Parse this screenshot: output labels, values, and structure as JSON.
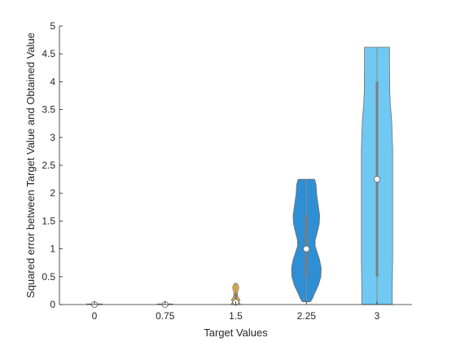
{
  "chart_data": {
    "type": "violin",
    "xlabel": "Target Values",
    "ylabel": "Squared error between Target Value and Obtained Value",
    "categories": [
      "0",
      "0.75",
      "1.5",
      "2.25",
      "3"
    ],
    "x_ticks": [
      "0",
      "0.75",
      "1.5",
      "2.25",
      "3"
    ],
    "y_ticks": [
      "0",
      "0.5",
      "1",
      "1.5",
      "2",
      "2.5",
      "3",
      "3.5",
      "4",
      "4.5",
      "5"
    ],
    "ylim": [
      0,
      5
    ],
    "grid": false,
    "violins": [
      {
        "category": "0",
        "color": "#e3e3e3",
        "min": 0,
        "max": 0.01,
        "median": 0,
        "q1": 0,
        "q3": 0,
        "profile": [
          [
            0,
            0.4
          ],
          [
            0.01,
            0.4
          ]
        ]
      },
      {
        "category": "0.75",
        "color": "#e3e3e3",
        "min": 0,
        "max": 0.01,
        "median": 0,
        "q1": 0,
        "q3": 0,
        "profile": [
          [
            0,
            0.4
          ],
          [
            0.01,
            0.4
          ]
        ]
      },
      {
        "category": "1.5",
        "color": "#e6b341",
        "min": 0,
        "max": 0.38,
        "median": 0.04,
        "q1": 0.01,
        "q3": 0.2,
        "profile": [
          [
            0,
            0.25
          ],
          [
            0.02,
            0.2
          ],
          [
            0.05,
            0.15
          ],
          [
            0.08,
            0.22
          ],
          [
            0.12,
            0.14
          ],
          [
            0.17,
            0.09
          ],
          [
            0.22,
            0.09
          ],
          [
            0.27,
            0.13
          ],
          [
            0.3,
            0.16
          ],
          [
            0.33,
            0.14
          ],
          [
            0.36,
            0.09
          ],
          [
            0.38,
            0.06
          ]
        ]
      },
      {
        "category": "2.25",
        "color": "#2f8fd5",
        "min": 0.05,
        "max": 2.25,
        "median": 1,
        "q1": 0.5,
        "q3": 1.6,
        "profile": [
          [
            0.05,
            0.2
          ],
          [
            0.1,
            0.3
          ],
          [
            0.2,
            0.42
          ],
          [
            0.35,
            0.62
          ],
          [
            0.5,
            0.74
          ],
          [
            0.65,
            0.76
          ],
          [
            0.8,
            0.68
          ],
          [
            0.95,
            0.54
          ],
          [
            1.05,
            0.45
          ],
          [
            1.15,
            0.45
          ],
          [
            1.3,
            0.56
          ],
          [
            1.45,
            0.66
          ],
          [
            1.6,
            0.68
          ],
          [
            1.8,
            0.6
          ],
          [
            2.0,
            0.52
          ],
          [
            2.15,
            0.5
          ],
          [
            2.25,
            0.42
          ]
        ]
      },
      {
        "category": "3",
        "color": "#70c9f2",
        "min": 0,
        "max": 4.62,
        "median": 2.25,
        "q1": 0.5,
        "q3": 4.0,
        "profile": [
          [
            0,
            0.78
          ],
          [
            0.3,
            0.78
          ],
          [
            0.8,
            0.8
          ],
          [
            1.5,
            0.8
          ],
          [
            2.1,
            0.8
          ],
          [
            2.8,
            0.8
          ],
          [
            3.3,
            0.75
          ],
          [
            3.6,
            0.68
          ],
          [
            3.85,
            0.65
          ],
          [
            4.05,
            0.65
          ],
          [
            4.3,
            0.64
          ],
          [
            4.62,
            0.64
          ]
        ]
      }
    ]
  }
}
